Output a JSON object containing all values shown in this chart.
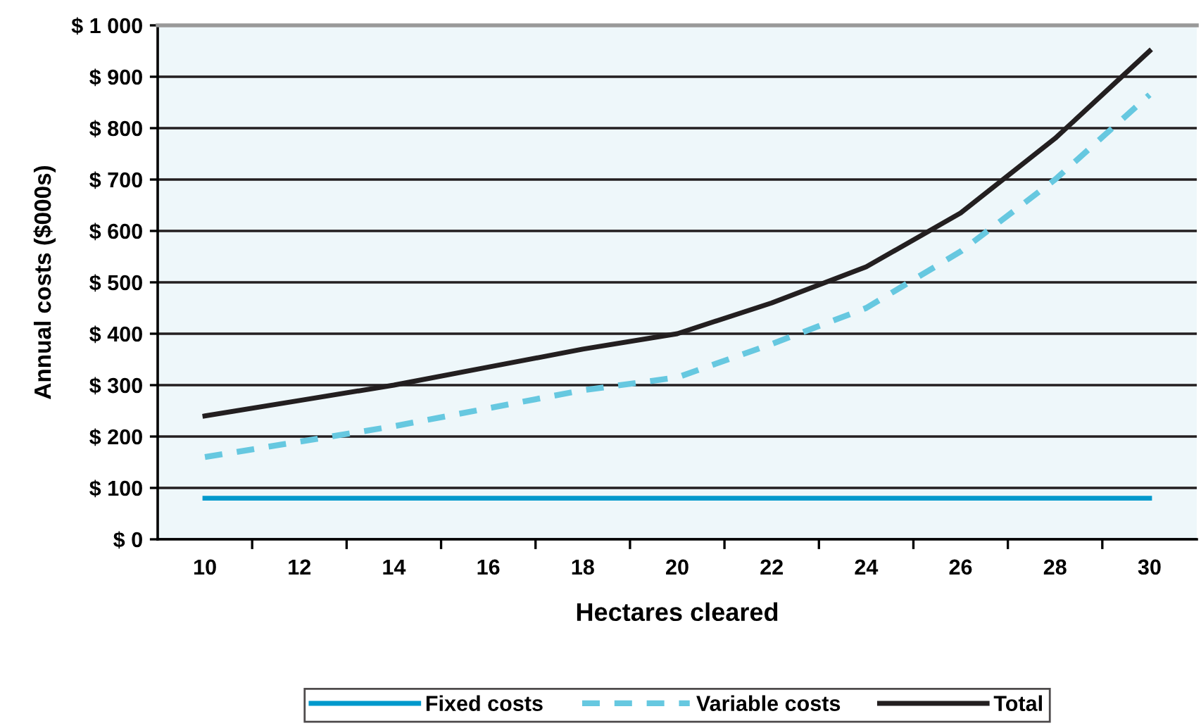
{
  "chart_data": {
    "type": "line",
    "xlabel": "Hectares cleared",
    "ylabel": "Annual costs ($000s)",
    "categories": [
      "10",
      "12",
      "14",
      "16",
      "18",
      "20",
      "22",
      "24",
      "26",
      "28",
      "30"
    ],
    "series": [
      {
        "name": "Fixed costs",
        "color": "#0099cc",
        "line_style": "solid",
        "values": [
          80,
          80,
          80,
          80,
          80,
          80,
          80,
          80,
          80,
          80,
          80
        ]
      },
      {
        "name": "Variable costs",
        "color": "#66c8e0",
        "line_style": "dashed",
        "values": [
          160,
          190,
          220,
          255,
          290,
          315,
          380,
          450,
          560,
          700,
          865
        ]
      },
      {
        "name": "Total",
        "color": "#231f20",
        "line_style": "solid",
        "values": [
          240,
          270,
          300,
          335,
          370,
          400,
          460,
          530,
          635,
          780,
          950
        ]
      }
    ],
    "ylim": [
      0,
      1000
    ],
    "yticks": [
      {
        "value": 0,
        "label": "$ 0"
      },
      {
        "value": 100,
        "label": "$ 100"
      },
      {
        "value": 200,
        "label": "$ 200"
      },
      {
        "value": 300,
        "label": "$ 300"
      },
      {
        "value": 400,
        "label": "$ 400"
      },
      {
        "value": 500,
        "label": "$ 500"
      },
      {
        "value": 600,
        "label": "$ 600"
      },
      {
        "value": 700,
        "label": "$ 700"
      },
      {
        "value": 800,
        "label": "$ 800"
      },
      {
        "value": 900,
        "label": "$ 900"
      },
      {
        "value": 1000,
        "label": "$ 1 000"
      }
    ],
    "grid": "y",
    "legend": "bottom",
    "marker": "none"
  }
}
